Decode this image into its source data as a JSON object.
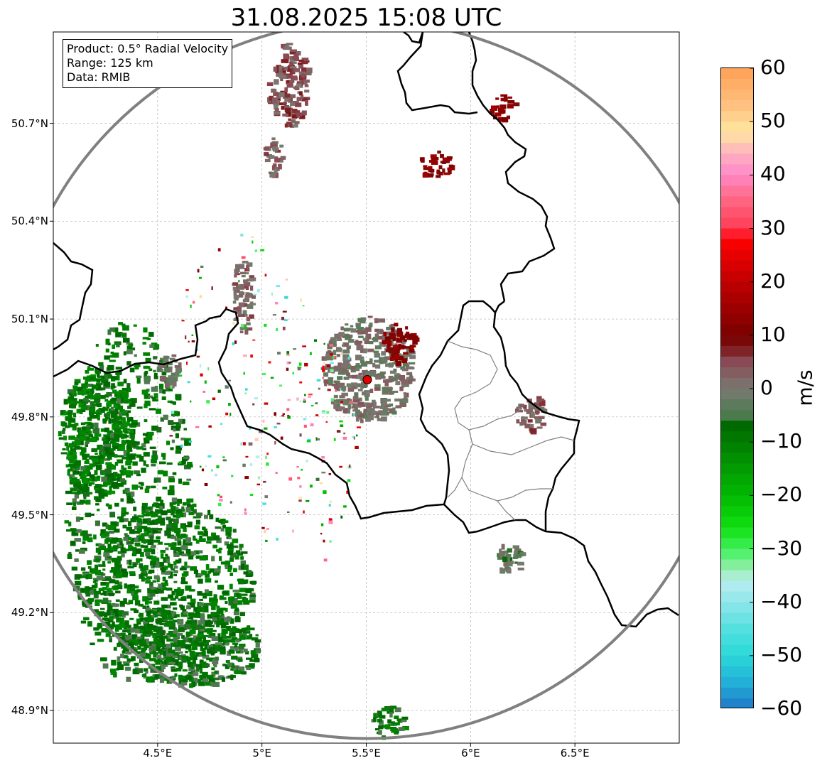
{
  "title": "31.08.2025 15:08 UTC",
  "info": {
    "product": "Product: 0.5° Radial Velocity",
    "range": "Range: 125 km",
    "data": "Data: RMIB"
  },
  "latitude_labels": [
    "50.7°N",
    "50.4°N",
    "50.1°N",
    "49.8°N",
    "49.5°N",
    "49.2°N",
    "48.9°N"
  ],
  "latitude_values": [
    50.7,
    50.4,
    50.1,
    49.8,
    49.5,
    49.2,
    48.9
  ],
  "longitude_labels": [
    "4.5°E",
    "5°E",
    "5.5°E",
    "6°E",
    "6.5°E"
  ],
  "longitude_values": [
    4.5,
    5.0,
    5.5,
    6.0,
    6.5
  ],
  "extent": {
    "lon_min": 4.0,
    "lon_max": 7.0,
    "lat_min": 48.8,
    "lat_max": 50.98
  },
  "radar_site": {
    "lon": 5.505,
    "lat": 49.914,
    "marker_color": "#e00000"
  },
  "range_ring_km": 125,
  "colorbar": {
    "min": -60,
    "max": 60,
    "unit": "m/s",
    "tick_values": [
      60,
      50,
      40,
      30,
      20,
      10,
      0,
      -10,
      -20,
      -30,
      -40,
      -50,
      -60
    ],
    "tick_labels": [
      "60",
      "50",
      "40",
      "30",
      "20",
      "10",
      "0",
      "−10",
      "−20",
      "−30",
      "−40",
      "−50",
      "−60"
    ],
    "color_stops": [
      {
        "v": -60,
        "c": "#1f78c8"
      },
      {
        "v": -55,
        "c": "#23b0d8"
      },
      {
        "v": -50,
        "c": "#2ad8d8"
      },
      {
        "v": -45,
        "c": "#55e0e0"
      },
      {
        "v": -40,
        "c": "#8ee6ea"
      },
      {
        "v": -36,
        "c": "#b9eef0"
      },
      {
        "v": -34,
        "c": "#9aeeb0"
      },
      {
        "v": -30,
        "c": "#3ef05a"
      },
      {
        "v": -26,
        "c": "#10e010"
      },
      {
        "v": -20,
        "c": "#02b802"
      },
      {
        "v": -13,
        "c": "#029002"
      },
      {
        "v": -6,
        "c": "#006400"
      },
      {
        "v": -5,
        "c": "#4b7a4d"
      },
      {
        "v": 0,
        "c": "#7a7a72"
      },
      {
        "v": 5,
        "c": "#8a4a55"
      },
      {
        "v": 8,
        "c": "#7a1010"
      },
      {
        "v": 10,
        "c": "#7a0000"
      },
      {
        "v": 20,
        "c": "#c00000"
      },
      {
        "v": 28,
        "c": "#ff0000"
      },
      {
        "v": 30,
        "c": "#ff3c55"
      },
      {
        "v": 36,
        "c": "#ff6c88"
      },
      {
        "v": 40,
        "c": "#ff88c8"
      },
      {
        "v": 44,
        "c": "#ffb0c0"
      },
      {
        "v": 48,
        "c": "#ffe8a0"
      },
      {
        "v": 53,
        "c": "#ffc080"
      },
      {
        "v": 60,
        "c": "#ffa055"
      }
    ]
  },
  "colors": {
    "range_ring": "#808080",
    "border_major": "#000000",
    "border_minor": "#808080",
    "grid": "#b0b0b0",
    "velocity_inbound": "#006400",
    "velocity_outbound": "#7a0000",
    "velocity_near_zero": "#7a6a6e"
  },
  "echo_cells": [
    {
      "lon": 4.35,
      "lat": 49.55,
      "rx": 0.3,
      "ry": 0.55,
      "v": -8
    },
    {
      "lon": 4.55,
      "lat": 49.3,
      "rx": 0.4,
      "ry": 0.25,
      "v": -8
    },
    {
      "lon": 4.2,
      "lat": 49.75,
      "rx": 0.18,
      "ry": 0.2,
      "v": -9
    },
    {
      "lon": 4.65,
      "lat": 49.1,
      "rx": 0.35,
      "ry": 0.12,
      "v": -7
    },
    {
      "lon": 5.12,
      "lat": 50.82,
      "rx": 0.1,
      "ry": 0.13,
      "v": 4
    },
    {
      "lon": 5.05,
      "lat": 50.6,
      "rx": 0.05,
      "ry": 0.06,
      "v": 3
    },
    {
      "lon": 4.9,
      "lat": 50.18,
      "rx": 0.05,
      "ry": 0.12,
      "v": 2
    },
    {
      "lon": 5.5,
      "lat": 49.95,
      "rx": 0.22,
      "ry": 0.16,
      "v": 0
    },
    {
      "lon": 5.65,
      "lat": 50.03,
      "rx": 0.08,
      "ry": 0.06,
      "v": 12
    },
    {
      "lon": 6.15,
      "lat": 50.75,
      "rx": 0.06,
      "ry": 0.04,
      "v": 12
    },
    {
      "lon": 5.82,
      "lat": 50.58,
      "rx": 0.08,
      "ry": 0.04,
      "v": 12
    },
    {
      "lon": 6.28,
      "lat": 49.82,
      "rx": 0.07,
      "ry": 0.06,
      "v": 3
    },
    {
      "lon": 6.18,
      "lat": 49.37,
      "rx": 0.06,
      "ry": 0.05,
      "v": -2
    },
    {
      "lon": 5.6,
      "lat": 48.87,
      "rx": 0.08,
      "ry": 0.05,
      "v": -8
    },
    {
      "lon": 4.55,
      "lat": 49.95,
      "rx": 0.06,
      "ry": 0.05,
      "v": -1
    }
  ]
}
